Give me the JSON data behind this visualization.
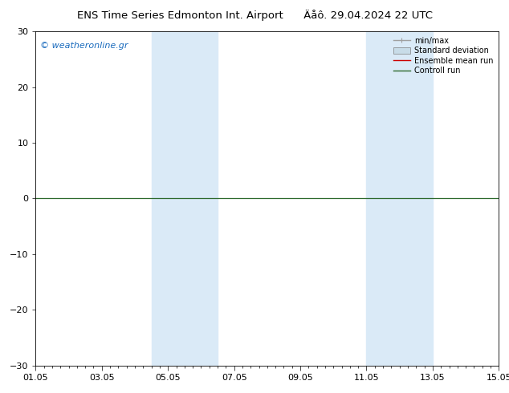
{
  "title": "ENS Time Series Edmonton Int. Airport",
  "subtitle": "Äåô. 29.04.2024 22 UTC",
  "watermark": "© weatheronline.gr",
  "ylim": [
    -30,
    30
  ],
  "yticks": [
    -30,
    -20,
    -10,
    0,
    10,
    20,
    30
  ],
  "xlim": [
    0,
    14
  ],
  "xtick_labels": [
    "01.05",
    "03.05",
    "05.05",
    "07.05",
    "09.05",
    "11.05",
    "13.05",
    "15.05"
  ],
  "xtick_positions": [
    0,
    2,
    4,
    6,
    8,
    10,
    12,
    14
  ],
  "shaded_bands": [
    {
      "xmin": 3.5,
      "xmax": 5.5
    },
    {
      "xmin": 10.0,
      "xmax": 12.0
    }
  ],
  "band_color": "#daeaf7",
  "zero_line_color": "#2d6a2d",
  "background_color": "#ffffff",
  "legend_labels": [
    "min/max",
    "Standard deviation",
    "Ensemble mean run",
    "Controll run"
  ],
  "legend_line_colors": [
    "#a0a0a0",
    "#c8dce8",
    "#cc0000",
    "#2d6a2d"
  ],
  "title_fontsize": 9.5,
  "tick_fontsize": 8,
  "watermark_color": "#1a6bbd",
  "watermark_fontsize": 8
}
